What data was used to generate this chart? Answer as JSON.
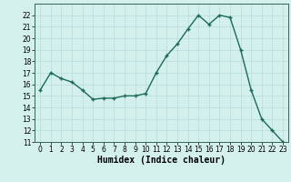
{
  "x": [
    0,
    1,
    2,
    3,
    4,
    5,
    6,
    7,
    8,
    9,
    10,
    11,
    12,
    13,
    14,
    15,
    16,
    17,
    18,
    19,
    20,
    21,
    22,
    23
  ],
  "y": [
    15.5,
    17.0,
    16.5,
    16.2,
    15.5,
    14.7,
    14.8,
    14.8,
    15.0,
    15.0,
    15.2,
    17.0,
    18.5,
    19.5,
    20.8,
    22.0,
    21.2,
    22.0,
    21.8,
    19.0,
    15.5,
    13.0,
    12.0,
    11.0
  ],
  "line_color": "#1a6b5a",
  "marker": "+",
  "marker_size": 3.5,
  "linewidth": 1.0,
  "xlabel": "Humidex (Indice chaleur)",
  "xlabel_fontsize": 7,
  "xlim": [
    -0.5,
    23.5
  ],
  "ylim": [
    11,
    23
  ],
  "yticks": [
    11,
    12,
    13,
    14,
    15,
    16,
    17,
    18,
    19,
    20,
    21,
    22
  ],
  "xticks": [
    0,
    1,
    2,
    3,
    4,
    5,
    6,
    7,
    8,
    9,
    10,
    11,
    12,
    13,
    14,
    15,
    16,
    17,
    18,
    19,
    20,
    21,
    22,
    23
  ],
  "tick_fontsize": 5.5,
  "bg_color": "#d4f0ec",
  "grid_color": "#b8ddd8",
  "grid_linewidth": 0.5,
  "spine_color": "#336655"
}
